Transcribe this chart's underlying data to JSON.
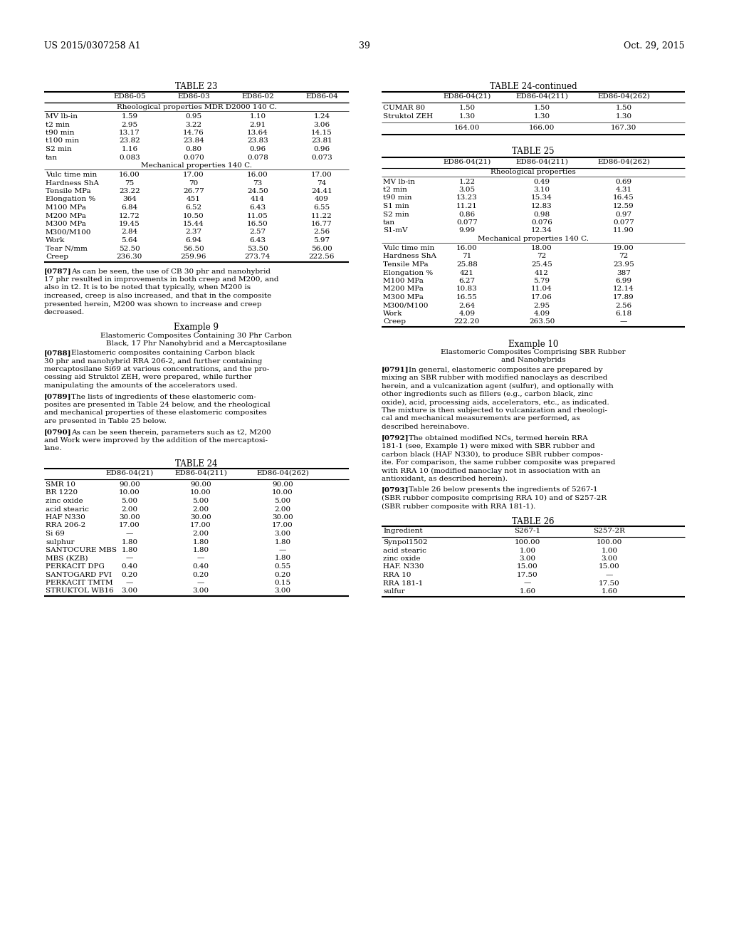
{
  "page_header_left": "US 2015/0307258 A1",
  "page_header_right": "Oct. 29, 2015",
  "page_number": "39",
  "background_color": "#ffffff",
  "table23_title": "TABLE 23",
  "table23_headers": [
    "",
    "ED86-05",
    "ED86-03",
    "ED86-02",
    "ED86-04"
  ],
  "table23_rheol_header": "Rheological properties MDR D2000 140 C.",
  "table23_mech_header": "Mechanical properties 140 C.",
  "table23_rheol_rows": [
    [
      "MV lb-in",
      "1.59",
      "0.95",
      "1.10",
      "1.24"
    ],
    [
      "t2 min",
      "2.95",
      "3.22",
      "2.91",
      "3.06"
    ],
    [
      "t90 min",
      "13.17",
      "14.76",
      "13.64",
      "14.15"
    ],
    [
      "t100 min",
      "23.82",
      "23.84",
      "23.83",
      "23.81"
    ],
    [
      "S2 min",
      "1.16",
      "0.80",
      "0.96",
      "0.96"
    ],
    [
      "tan",
      "0.083",
      "0.070",
      "0.078",
      "0.073"
    ]
  ],
  "table23_mech_rows": [
    [
      "Vulc time min",
      "16.00",
      "17.00",
      "16.00",
      "17.00"
    ],
    [
      "Hardness ShA",
      "75",
      "70",
      "73",
      "74"
    ],
    [
      "Tensile MPa",
      "23.22",
      "26.77",
      "24.50",
      "24.41"
    ],
    [
      "Elongation %",
      "364",
      "451",
      "414",
      "409"
    ],
    [
      "M100 MPa",
      "6.84",
      "6.52",
      "6.43",
      "6.55"
    ],
    [
      "M200 MPa",
      "12.72",
      "10.50",
      "11.05",
      "11.22"
    ],
    [
      "M300 MPa",
      "19.45",
      "15.44",
      "16.50",
      "16.77"
    ],
    [
      "M300/M100",
      "2.84",
      "2.37",
      "2.57",
      "2.56"
    ],
    [
      "Work",
      "5.64",
      "6.94",
      "6.43",
      "5.97"
    ],
    [
      "Tear N/mm",
      "52.50",
      "56.50",
      "53.50",
      "56.00"
    ],
    [
      "Creep",
      "236.30",
      "259.96",
      "273.74",
      "222.56"
    ]
  ],
  "table24cont_title": "TABLE 24-continued",
  "table24cont_headers": [
    "",
    "ED86-04(21)",
    "ED86-04(211)",
    "ED86-04(262)"
  ],
  "table24cont_rows": [
    [
      "CUMAR 80",
      "1.50",
      "1.50",
      "1.50"
    ],
    [
      "Struktol ZEH",
      "1.30",
      "1.30",
      "1.30"
    ],
    [
      "",
      "164.00",
      "166.00",
      "167.30"
    ]
  ],
  "table25_title": "TABLE 25",
  "table25_headers": [
    "",
    "ED86-04(21)",
    "ED86-04(211)",
    "ED86-04(262)"
  ],
  "table25_rheol_header": "Rheological properties",
  "table25_mech_header": "Mechanical properties 140 C.",
  "table25_rheol_rows": [
    [
      "MV lb-in",
      "1.22",
      "0.49",
      "0.69"
    ],
    [
      "t2 min",
      "3.05",
      "3.10",
      "4.31"
    ],
    [
      "t90 min",
      "13.23",
      "15.34",
      "16.45"
    ],
    [
      "S1 min",
      "11.21",
      "12.83",
      "12.59"
    ],
    [
      "S2 min",
      "0.86",
      "0.98",
      "0.97"
    ],
    [
      "tan",
      "0.077",
      "0.076",
      "0.077"
    ],
    [
      "S1-mV",
      "9.99",
      "12.34",
      "11.90"
    ]
  ],
  "table25_mech_rows": [
    [
      "Vulc time min",
      "16.00",
      "18.00",
      "19.00"
    ],
    [
      "Hardness ShA",
      "71",
      "72",
      "72"
    ],
    [
      "Tensile MPa",
      "25.88",
      "25.45",
      "23.95"
    ],
    [
      "Elongation %",
      "421",
      "412",
      "387"
    ],
    [
      "M100 MPa",
      "6.27",
      "5.79",
      "6.99"
    ],
    [
      "M200 MPa",
      "10.83",
      "11.04",
      "12.14"
    ],
    [
      "M300 MPa",
      "16.55",
      "17.06",
      "17.89"
    ],
    [
      "M300/M100",
      "2.64",
      "2.95",
      "2.56"
    ],
    [
      "Work",
      "4.09",
      "4.09",
      "6.18"
    ],
    [
      "Creep",
      "222.20",
      "263.50",
      "—"
    ]
  ],
  "para787_num": "[0787]",
  "para787_text": "As can be seen, the use of CB 30 phr and nanohybrid 17 phr resulted in improvements in both creep and M200, and also in t2. It is to be noted that typically, when M200 is increased, creep is also increased, and that in the composite presented herein, M200 was shown to increase and creep decreased.",
  "example9_title": "Example 9",
  "example9_subtitle1": "Elastomeric Composites Containing 30 Phr Carbon",
  "example9_subtitle2": "Black, 17 Phr Nanohybrid and a Mercaptosilane",
  "para788_num": "[0788]",
  "para788_text": "Elastomeric composites containing Carbon black 30 phr and nanohybrid RRA 206-2, and further containing mercaptosilane Si69 at various concentrations, and the pro-cessing aid Struktol ZEH, were prepared, while further manipulating the amounts of the accelerators used.",
  "para789_num": "[0789]",
  "para789_text": "The lists of ingredients of these elastomeric com-posites are presented in Table 24 below, and the rheological and mechanical properties of these elastomeric composites are presented in Table 25 below.",
  "para790_num": "[0790]",
  "para790_text": "As can be seen therein, parameters such as t2, M200 and Work were improved by the addition of the mercaptosi-lane.",
  "table24_title": "TABLE 24",
  "table24_headers": [
    "",
    "ED86-04(21)",
    "ED86-04(211)",
    "ED86-04(262)"
  ],
  "table24_rows": [
    [
      "SMR 10",
      "90.00",
      "90.00",
      "90.00"
    ],
    [
      "BR 1220",
      "10.00",
      "10.00",
      "10.00"
    ],
    [
      "zinc oxide",
      "5.00",
      "5.00",
      "5.00"
    ],
    [
      "acid stearic",
      "2.00",
      "2.00",
      "2.00"
    ],
    [
      "HAF N330",
      "30.00",
      "30.00",
      "30.00"
    ],
    [
      "RRA 206-2",
      "17.00",
      "17.00",
      "17.00"
    ],
    [
      "Si 69",
      "—",
      "2.00",
      "3.00"
    ],
    [
      "sulphur",
      "1.80",
      "1.80",
      "1.80"
    ],
    [
      "SANTOCURE MBS",
      "1.80",
      "1.80",
      "—"
    ],
    [
      "MBS (KZB)",
      "—",
      "—",
      "1.80"
    ],
    [
      "PERKACIT DPG",
      "0.40",
      "0.40",
      "0.55"
    ],
    [
      "SANTOGARD PVI",
      "0.20",
      "0.20",
      "0.20"
    ],
    [
      "PERKACIT TMTM",
      "—",
      "—",
      "0.15"
    ],
    [
      "STRUKTOL WB16",
      "3.00",
      "3.00",
      "3.00"
    ]
  ],
  "example10_title": "Example 10",
  "example10_subtitle1": "Elastomeric Composites Comprising SBR Rubber",
  "example10_subtitle2": "and Nanohybrids",
  "para791_num": "[0791]",
  "para791_text": "In general, elastomeric composites are prepared by mixing an SBR rubber with modified nanoclays as described herein, and a vulcanization agent (sulfur), and optionally with other ingredients such as fillers (e.g., carbon black, zinc oxide), acid, processing aids, accelerators, etc., as indicated. The mixture is then subjected to vulcanization and rheologi-cal and mechanical measurements are performed, as described hereinabove.",
  "para792_num": "[0792]",
  "para792_text": "The obtained modified NCs, termed herein RRA 181-1 (see, Example 1) were mixed with SBR rubber and carbon black (HAF N330), to produce SBR rubber compos-ite. For comparison, the same rubber composite was prepared with RRA 10 (modified nanoclay not in association with an antioxidant, as described herein).",
  "para793_num": "[0793]",
  "para793_text": "Table 26 below presents the ingredients of 5267-1 (SBR rubber composite comprising RRA 10) and of S257-2R (SBR rubber composite with RRA 181-1).",
  "table26_title": "TABLE 26",
  "table26_headers": [
    "Ingredient",
    "S267-1",
    "S257-2R"
  ],
  "table26_rows": [
    [
      "Synpol1502",
      "100.00",
      "100.00"
    ],
    [
      "acid stearic",
      "1.00",
      "1.00"
    ],
    [
      "zinc oxide",
      "3.00",
      "3.00"
    ],
    [
      "HAF. N330",
      "15.00",
      "15.00"
    ],
    [
      "RRA 10",
      "17.50",
      "—"
    ],
    [
      "RRA 181-1",
      "—",
      "17.50"
    ],
    [
      "sulfur",
      "1.60",
      "1.60"
    ]
  ]
}
